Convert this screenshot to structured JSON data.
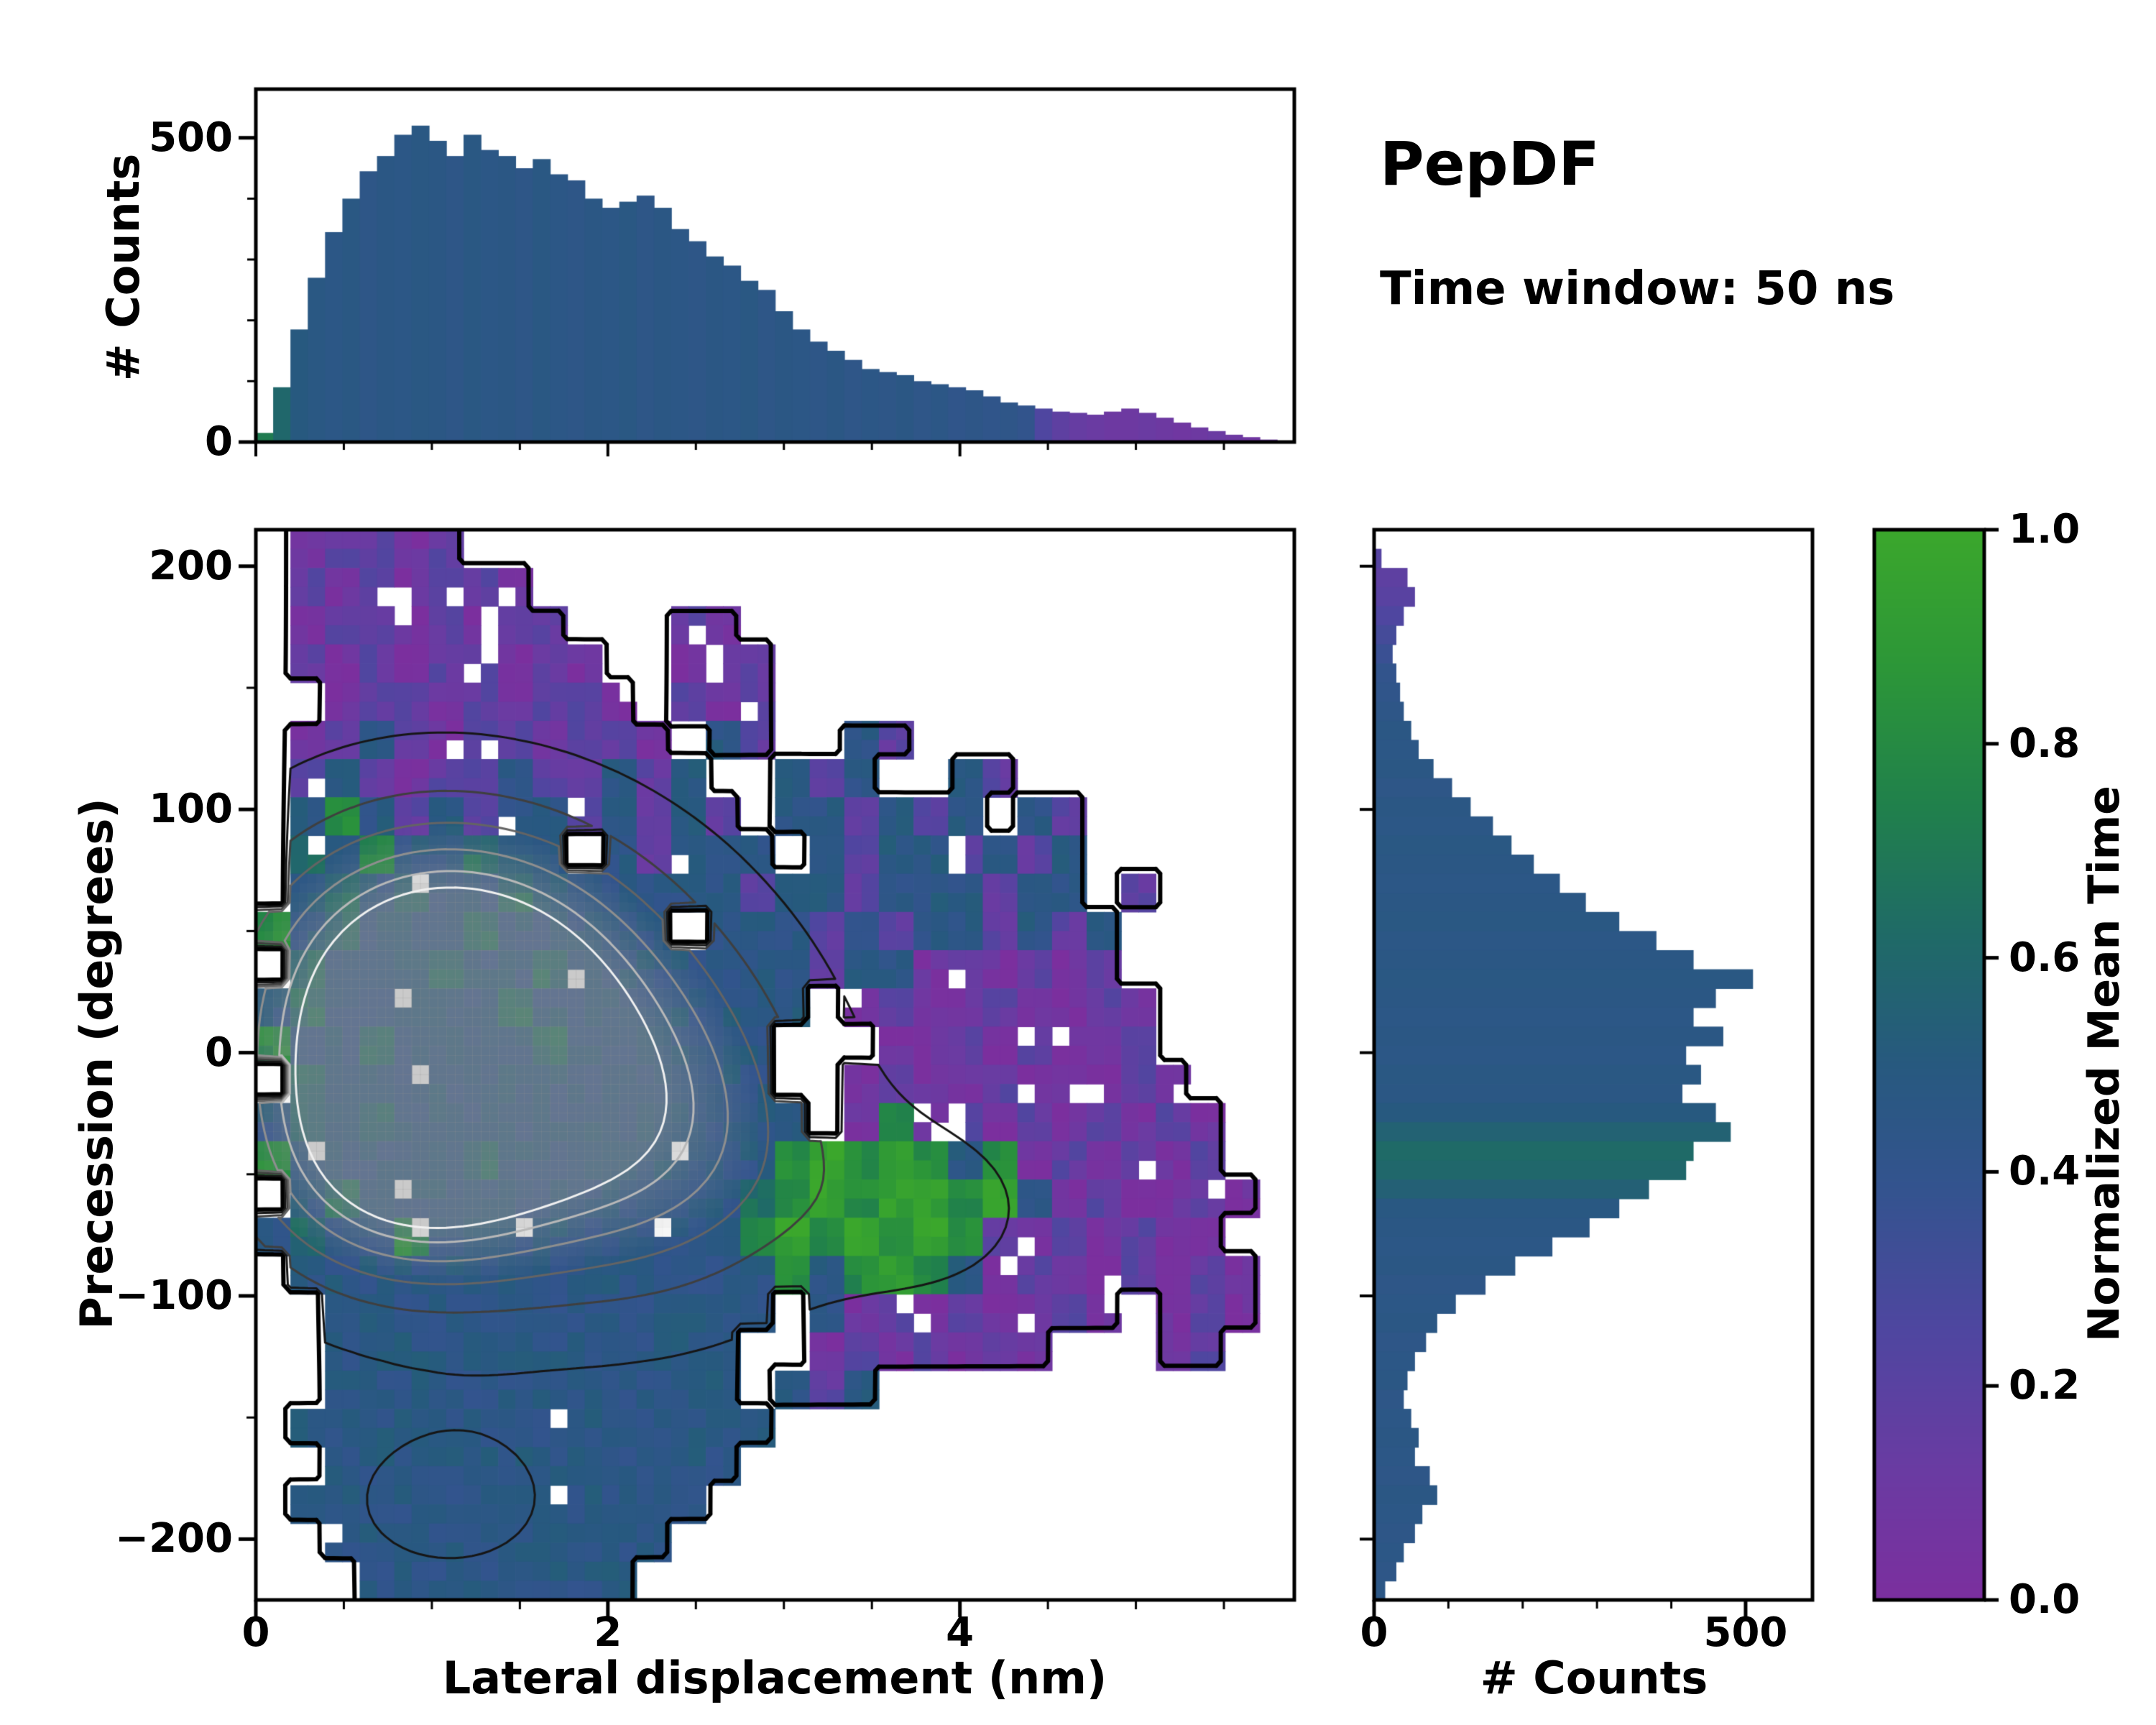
{
  "titles": {
    "main": "PepDF",
    "subtitle": "Time window: 50 ns"
  },
  "colorbar": {
    "label": "Normalized Mean Time",
    "tick_labels": [
      "0.0",
      "0.2",
      "0.4",
      "0.6",
      "0.8",
      "1.0"
    ],
    "tick_values": [
      0,
      0.2,
      0.4,
      0.6,
      0.8,
      1
    ],
    "stops": [
      [
        0,
        "#7b2f9e"
      ],
      [
        0.12,
        "#6a3ba2"
      ],
      [
        0.25,
        "#4f46a0"
      ],
      [
        0.38,
        "#34538f"
      ],
      [
        0.5,
        "#27597f"
      ],
      [
        0.62,
        "#1f6a67"
      ],
      [
        0.74,
        "#20804c"
      ],
      [
        0.87,
        "#2c9638"
      ],
      [
        1,
        "#3ba72c"
      ]
    ]
  },
  "chart_data": [
    {
      "type": "bar",
      "id": "top-histogram",
      "title": "",
      "xlabel": "",
      "ylabel": "# Counts",
      "xlim": [
        0,
        5.9
      ],
      "ylim": [
        0,
        580
      ],
      "ytick_values": [
        0,
        500
      ],
      "ytick_labels": [
        "0",
        "500"
      ],
      "bin_start": 0,
      "bin_width": 0.0983,
      "values": [
        15,
        90,
        185,
        270,
        345,
        400,
        445,
        470,
        505,
        520,
        495,
        470,
        505,
        480,
        470,
        450,
        465,
        440,
        430,
        400,
        385,
        395,
        405,
        385,
        350,
        330,
        305,
        290,
        265,
        250,
        215,
        185,
        165,
        150,
        135,
        120,
        115,
        110,
        100,
        95,
        90,
        85,
        75,
        65,
        60,
        55,
        50,
        48,
        45,
        50,
        55,
        48,
        40,
        32,
        24,
        18,
        12,
        8,
        4,
        2
      ],
      "color_values": [
        0.72,
        0.6,
        0.5,
        0.47,
        0.45,
        0.47,
        0.44,
        0.46,
        0.45,
        0.47,
        0.46,
        0.44,
        0.47,
        0.45,
        0.46,
        0.44,
        0.47,
        0.45,
        0.44,
        0.46,
        0.45,
        0.47,
        0.44,
        0.46,
        0.45,
        0.44,
        0.46,
        0.45,
        0.47,
        0.44,
        0.46,
        0.45,
        0.44,
        0.46,
        0.43,
        0.45,
        0.44,
        0.46,
        0.43,
        0.45,
        0.42,
        0.44,
        0.42,
        0.43,
        0.4,
        0.25,
        0.18,
        0.14,
        0.12,
        0.1,
        0.1,
        0.12,
        0.1,
        0.08,
        0.1,
        0.12,
        0.1,
        0.08,
        0.1,
        0.1
      ]
    },
    {
      "type": "heatmap",
      "id": "joint-density",
      "xlabel": "Lateral displacement (nm)",
      "ylabel": "Precession (degrees)",
      "xlim": [
        0,
        5.9
      ],
      "ylim": [
        -225,
        215
      ],
      "xtick_values": [
        0,
        2,
        4
      ],
      "xtick_labels": [
        "0",
        "2",
        "4"
      ],
      "ytick_values": [
        -200,
        -100,
        0,
        100,
        200
      ],
      "ytick_labels": [
        "−200",
        "−100",
        "0",
        "100",
        "200"
      ],
      "n_cols": 30,
      "n_rows": 28,
      "value_map": {
        "p": 0.05,
        "v": 0.18,
        "d": 0.3,
        "b": 0.46,
        "t": 0.62,
        "g": 0.8,
        "G": 0.95
      },
      "grid_rows": [
        ".pvvpv........................",
        ".vpvpvvp......................",
        ".pvvpvpvv...vp................",
        ".vpvpvvpvp..pvv...............",
        "..pvvpvpvvp.vpv...............",
        ".pvbvpvvpvvp.bv..bv...........",
        ".vbvpvvbvvbvb..bvb..bv........",
        ".bgbvbvbbvbvbv.bbvbvb.bv......",
        ".tbgbbtbb.bvbbb.bvbbvbvb......",
        ".btbtbbtbbbbbbvbbvbbbvbb.v....",
        "gbtbbbtbbbbb.bbbvbvbbvbvb.....",
        ".tbbbtbbtbbbbbbbvbbpvpvpv.....",
        "btbbbbbtbbbbbbbb.pvppvppvp....",
        "gbbtbbbbtbbbbbb...ppvpvppv....",
        ".tbbbbbbbbbbbbb..pvppvpppvp...",
        "btbtbbbbbbbbbbbb.pgpvpvpvpvp..",
        "gbbbbbtbbbbbbbbgGgGgbgpvpvpv..",
        ".btbbbbbbbbbbbtgGgGGgGbpvppvp.",
        "btbbgbbbbbbbbbgGgGgGgvpvpvpp..",
        ".bbbbbbbbbbbbbbgbgGgbpvppvpvp.",
        "..bbbbbbbbbbbbb.bpvpvppvp.pvp.",
        "..bbbbbbbbbbbb..pvpvpvp...pv..",
        "..bbbbbbbbbbbb.bvb............",
        ".bbbbbbbbbbbbbb...............",
        "..bbbbbbbbbbbb................",
        ".bbbbbbbbbbbb.................",
        "..bbbbbbbbbb..................",
        "...bbbbbbbb..................."
      ],
      "contour_model": {
        "occupancy_weight": 1.0,
        "bumps": [
          {
            "x": 0.85,
            "y": 10,
            "sx": 0.75,
            "sy": 55,
            "a": 5.2
          },
          {
            "x": 0.8,
            "y": -50,
            "sx": 0.6,
            "sy": 35,
            "a": 3.0
          },
          {
            "x": 1.8,
            "y": -20,
            "sx": 0.85,
            "sy": 55,
            "a": 3.4
          },
          {
            "x": 1.3,
            "y": 40,
            "sx": 0.8,
            "sy": 45,
            "a": 2.6
          },
          {
            "x": 2.4,
            "y": -40,
            "sx": 0.6,
            "sy": 45,
            "a": 1.8
          },
          {
            "x": 1.1,
            "y": -185,
            "sx": 0.5,
            "sy": 25,
            "a": 1.2
          },
          {
            "x": 3.8,
            "y": -65,
            "sx": 0.55,
            "sy": 30,
            "a": 1.1
          }
        ],
        "levels": [
          0.5,
          1.8,
          3.0,
          4.0,
          5.0,
          5.9,
          6.6
        ],
        "level_colors": [
          "#000000",
          "#161616",
          "#3f3f3f",
          "#646464",
          "#8f8f8f",
          "#b8b8b8",
          "#f0f0f0"
        ],
        "level_widths": [
          6,
          3,
          3,
          3,
          3,
          3,
          3
        ],
        "core_wash": {
          "threshold": 4.0,
          "alpha_per_unit": 0.18,
          "max_alpha": 0.5,
          "color": "150,150,150"
        }
      }
    },
    {
      "type": "bar",
      "id": "right-histogram",
      "orientation": "horizontal",
      "xlabel": "# Counts",
      "ylabel": "",
      "xlim": [
        0,
        590
      ],
      "xtick_values": [
        0,
        500
      ],
      "xtick_labels": [
        "0",
        "500"
      ],
      "bin_start": 215,
      "bin_step": -7.857,
      "values": [
        0,
        10,
        45,
        55,
        40,
        30,
        25,
        30,
        35,
        40,
        50,
        60,
        80,
        105,
        130,
        160,
        185,
        215,
        250,
        285,
        330,
        380,
        430,
        510,
        460,
        430,
        470,
        420,
        440,
        415,
        460,
        480,
        430,
        420,
        370,
        330,
        290,
        240,
        190,
        150,
        110,
        85,
        70,
        55,
        45,
        40,
        50,
        60,
        55,
        75,
        85,
        65,
        55,
        40,
        30,
        15
      ],
      "color_values": [
        0.3,
        0.22,
        0.18,
        0.2,
        0.25,
        0.3,
        0.35,
        0.4,
        0.42,
        0.44,
        0.46,
        0.45,
        0.46,
        0.44,
        0.46,
        0.45,
        0.47,
        0.46,
        0.45,
        0.46,
        0.47,
        0.45,
        0.46,
        0.47,
        0.46,
        0.45,
        0.46,
        0.45,
        0.47,
        0.46,
        0.5,
        0.56,
        0.62,
        0.6,
        0.55,
        0.48,
        0.46,
        0.45,
        0.46,
        0.44,
        0.45,
        0.46,
        0.44,
        0.45,
        0.46,
        0.44,
        0.45,
        0.46,
        0.45,
        0.44,
        0.46,
        0.45,
        0.44,
        0.45,
        0.44,
        0.45
      ]
    }
  ]
}
